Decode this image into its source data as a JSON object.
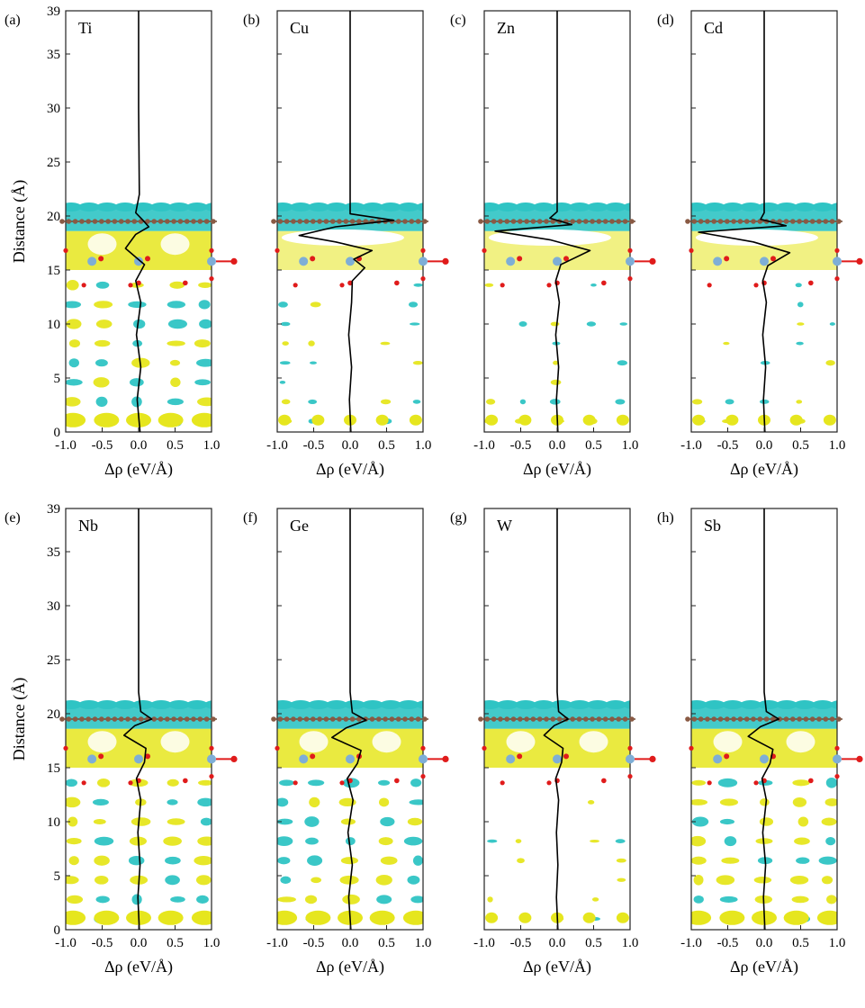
{
  "figure": {
    "ylabel": "Distance (Å)",
    "xlabel": "Δρ (eV/Å)",
    "colors": {
      "accumulation": "#e6e61e",
      "depletion": "#2fc4c4",
      "curve": "#000000",
      "carbon_atom": "#8a5a44",
      "oxygen_atom": "#e01b1b",
      "metal_atom": "#7eaed6"
    }
  },
  "chart_data": [
    {
      "type": "line",
      "panel": "(a)",
      "element": "Ti",
      "xticks": [
        "-1.0",
        "-0.5",
        "0.0",
        "0.5",
        "1.0"
      ],
      "yticks": [
        "0",
        "5",
        "10",
        "15",
        "20",
        "25",
        "30",
        "35",
        "39"
      ],
      "xlim": [
        -1.0,
        1.0
      ],
      "ylim": [
        0,
        39
      ],
      "series": [
        {
          "y": [
            0,
            3,
            6,
            9,
            12,
            14,
            15.5,
            17,
            18.3,
            19,
            19.6,
            20.3,
            22,
            30,
            39
          ],
          "x": [
            0.02,
            -0.02,
            0.03,
            -0.03,
            0.03,
            -0.04,
            0.08,
            -0.18,
            -0.04,
            0.14,
            0.06,
            -0.04,
            0.01,
            0.0,
            0.0
          ]
        }
      ]
    },
    {
      "type": "line",
      "panel": "(b)",
      "element": "Cu",
      "xticks": [
        "-1.0",
        "-0.5",
        "0.0",
        "0.5",
        "1.0"
      ],
      "yticks": [
        "0",
        "5",
        "10",
        "15",
        "20",
        "25",
        "30",
        "35",
        "39"
      ],
      "xlim": [
        -1.0,
        1.0
      ],
      "ylim": [
        0,
        39
      ],
      "series": [
        {
          "y": [
            0,
            3,
            6,
            9,
            12,
            14,
            15.2,
            16,
            16.8,
            17.6,
            18.2,
            19,
            19.6,
            20.2,
            22,
            30,
            39
          ],
          "x": [
            0.01,
            -0.01,
            0.02,
            -0.02,
            0.02,
            0.03,
            0.2,
            0.05,
            0.3,
            -0.2,
            -0.7,
            -0.2,
            0.6,
            0.0,
            0.0,
            0.0,
            0.0
          ]
        }
      ]
    },
    {
      "type": "line",
      "panel": "(c)",
      "element": "Zn",
      "xticks": [
        "-1.0",
        "-0.5",
        "0.0",
        "0.5",
        "1.0"
      ],
      "yticks": [
        "0",
        "5",
        "10",
        "15",
        "20",
        "25",
        "30",
        "35",
        "39"
      ],
      "xlim": [
        -1.0,
        1.0
      ],
      "ylim": [
        0,
        39
      ],
      "series": [
        {
          "y": [
            0,
            3,
            6,
            9,
            12,
            14,
            15.5,
            16.8,
            17.8,
            18.6,
            19.2,
            19.8,
            20.4,
            22,
            30,
            39
          ],
          "x": [
            0.01,
            -0.01,
            0.02,
            -0.02,
            0.03,
            -0.02,
            0.05,
            0.45,
            -0.1,
            -0.85,
            0.2,
            -0.1,
            0.0,
            0.0,
            0.0,
            0.0
          ]
        }
      ]
    },
    {
      "type": "line",
      "panel": "(d)",
      "element": "Cd",
      "xticks": [
        "-1.0",
        "-0.5",
        "0.0",
        "0.5",
        "1.0"
      ],
      "yticks": [
        "0",
        "5",
        "10",
        "15",
        "20",
        "25",
        "30",
        "35",
        "39"
      ],
      "xlim": [
        -1.0,
        1.0
      ],
      "ylim": [
        0,
        39
      ],
      "series": [
        {
          "y": [
            0,
            3,
            6,
            9,
            12,
            14,
            15.4,
            16.6,
            17.6,
            18.5,
            19.1,
            19.7,
            20.3,
            22,
            30,
            39
          ],
          "x": [
            0.01,
            -0.01,
            0.02,
            -0.02,
            0.03,
            -0.02,
            0.05,
            0.35,
            -0.15,
            -0.9,
            0.3,
            -0.05,
            0.0,
            0.0,
            0.0,
            0.0
          ]
        }
      ]
    },
    {
      "type": "line",
      "panel": "(e)",
      "element": "Nb",
      "xticks": [
        "-1.0",
        "-0.5",
        "0.0",
        "0.5",
        "1.0"
      ],
      "yticks": [
        "0",
        "5",
        "10",
        "15",
        "20",
        "25",
        "30",
        "35",
        "39"
      ],
      "xlim": [
        -1.0,
        1.0
      ],
      "ylim": [
        0,
        39
      ],
      "series": [
        {
          "y": [
            0,
            3,
            6,
            9,
            12,
            14,
            15.5,
            16.8,
            18,
            18.9,
            19.5,
            20.2,
            22,
            30,
            39
          ],
          "x": [
            0.01,
            -0.01,
            0.02,
            -0.01,
            0.03,
            -0.03,
            0.08,
            0.1,
            -0.2,
            -0.05,
            0.18,
            0.03,
            0.0,
            0.0,
            0.0
          ]
        }
      ]
    },
    {
      "type": "line",
      "panel": "(f)",
      "element": "Ge",
      "xticks": [
        "-1.0",
        "-0.5",
        "0.0",
        "0.5",
        "1.0"
      ],
      "yticks": [
        "0",
        "5",
        "10",
        "15",
        "20",
        "25",
        "30",
        "35",
        "39"
      ],
      "xlim": [
        -1.0,
        1.0
      ],
      "ylim": [
        0,
        39
      ],
      "series": [
        {
          "y": [
            0,
            3,
            6,
            9,
            12,
            14,
            15.4,
            16.6,
            17.8,
            18.7,
            19.4,
            20.1,
            22,
            30,
            39
          ],
          "x": [
            0.01,
            -0.02,
            0.03,
            -0.03,
            0.04,
            -0.04,
            0.1,
            0.15,
            -0.25,
            -0.05,
            0.22,
            0.03,
            0.0,
            0.0,
            0.0
          ]
        }
      ]
    },
    {
      "type": "line",
      "panel": "(g)",
      "element": "W",
      "xticks": [
        "-1.0",
        "-0.5",
        "0.0",
        "0.5",
        "1.0"
      ],
      "yticks": [
        "0",
        "5",
        "10",
        "15",
        "20",
        "25",
        "30",
        "35",
        "39"
      ],
      "xlim": [
        -1.0,
        1.0
      ],
      "ylim": [
        0,
        39
      ],
      "series": [
        {
          "y": [
            0,
            3,
            6,
            9,
            12,
            14,
            15.5,
            16.8,
            18,
            18.9,
            19.5,
            20.2,
            22,
            30,
            39
          ],
          "x": [
            0.01,
            -0.01,
            0.01,
            -0.01,
            0.02,
            -0.02,
            0.06,
            0.08,
            -0.18,
            -0.04,
            0.15,
            0.02,
            0.0,
            0.0,
            0.0
          ]
        }
      ]
    },
    {
      "type": "line",
      "panel": "(h)",
      "element": "Sb",
      "xticks": [
        "-1.0",
        "-0.5",
        "0.0",
        "0.5",
        "1.0"
      ],
      "yticks": [
        "0",
        "5",
        "10",
        "15",
        "20",
        "25",
        "30",
        "35",
        "39"
      ],
      "xlim": [
        -1.0,
        1.0
      ],
      "ylim": [
        0,
        39
      ],
      "series": [
        {
          "y": [
            0,
            3,
            6,
            9,
            12,
            14,
            15.4,
            16.7,
            17.9,
            18.8,
            19.5,
            20.2,
            22,
            30,
            39
          ],
          "x": [
            0.01,
            -0.01,
            0.02,
            -0.02,
            0.03,
            -0.03,
            0.08,
            0.12,
            -0.22,
            -0.05,
            0.2,
            0.03,
            0.0,
            0.0,
            0.0
          ]
        }
      ]
    }
  ]
}
